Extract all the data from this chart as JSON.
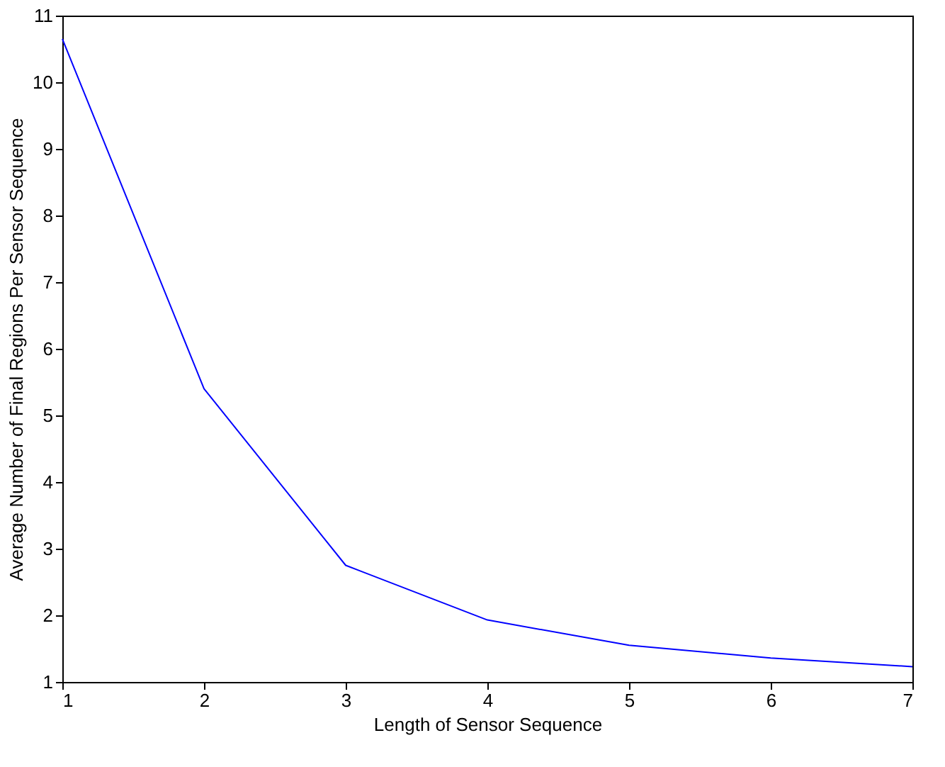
{
  "chart_data": {
    "type": "line",
    "xlabel": "Length of Sensor Sequence",
    "ylabel": "Average Number of Final Regions Per Sensor Sequence",
    "x": [
      1,
      2,
      3,
      4,
      5,
      6,
      7
    ],
    "series": [
      {
        "color": "#0000ff",
        "values": [
          10.65,
          5.4,
          2.75,
          1.93,
          1.55,
          1.36,
          1.23
        ]
      }
    ],
    "xlim": [
      1,
      7
    ],
    "xticks": [
      1,
      2,
      3,
      4,
      5,
      6,
      7
    ],
    "ylim": [
      1,
      11
    ],
    "yticks": [
      1,
      2,
      3,
      4,
      5,
      6,
      7,
      8,
      9,
      10,
      11
    ],
    "grid": false,
    "legend": false,
    "marker": "none",
    "line_style": "solid"
  }
}
